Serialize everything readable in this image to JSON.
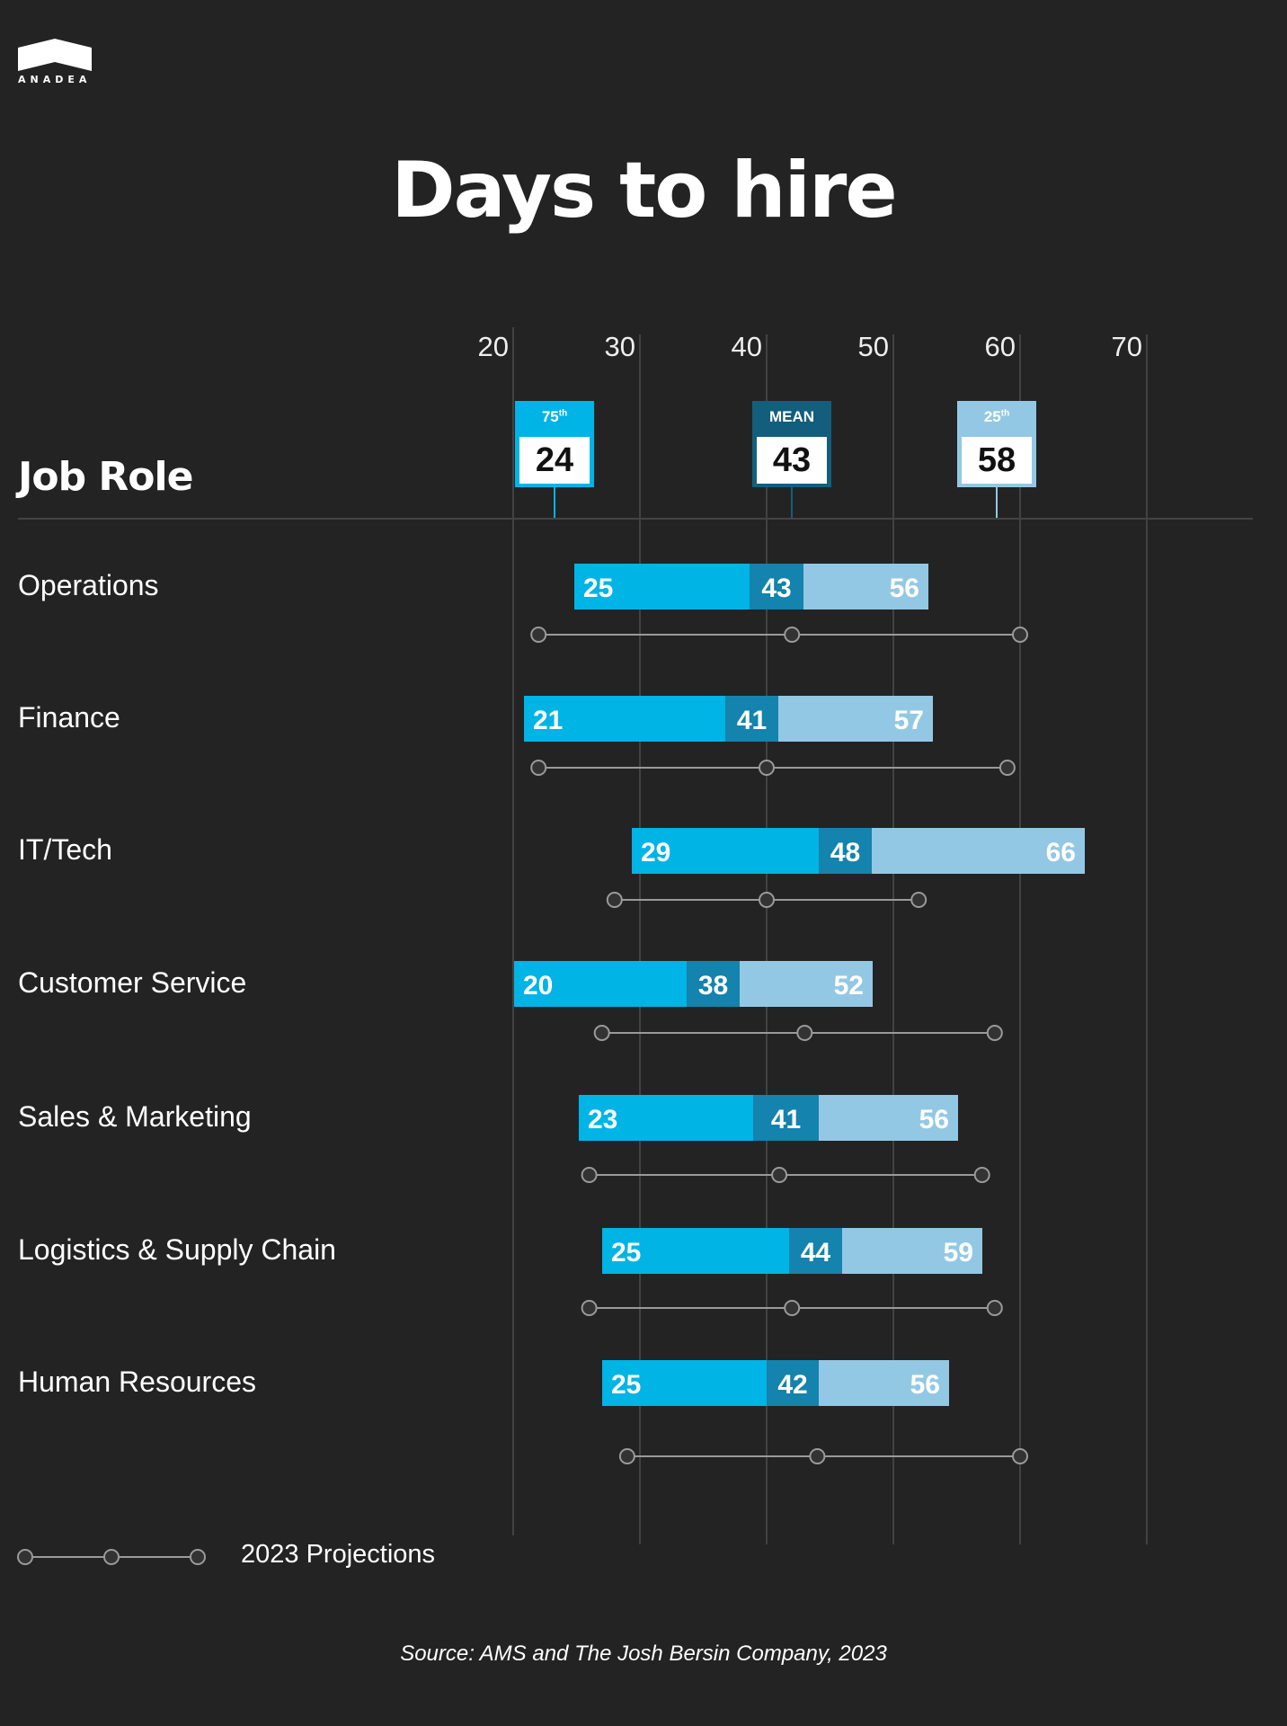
{
  "brand": {
    "name": "ANADEA",
    "logo_icon": "anadea-roof-logo-icon"
  },
  "colors": {
    "background": "#232323",
    "p75": "#00b4e6",
    "mean": "#1483ad",
    "mean_marker": "#135e7d",
    "p25": "#93c8e4",
    "grid": "#424242",
    "projection": "#9a9a9a"
  },
  "chart_data": {
    "type": "bar",
    "subtype": "stacked-horizontal-range",
    "title": "Days to hire",
    "ylabel": "Job Role",
    "xlabel": "",
    "xlim": [
      20,
      70
    ],
    "x_ticks": [
      "20",
      "30",
      "40",
      "50",
      "60",
      "70"
    ],
    "grid": true,
    "markers": [
      {
        "key": "p75",
        "label": "75",
        "sup": "th",
        "value": 24
      },
      {
        "key": "mean",
        "label": "MEAN",
        "sup": "",
        "value": 43
      },
      {
        "key": "p25",
        "label": "25",
        "sup": "th",
        "value": 58
      }
    ],
    "categories": [
      "Operations",
      "Finance",
      "IT/Tech",
      "Customer Service",
      "Sales & Marketing",
      "Logistics & Supply Chain",
      "Human Resources"
    ],
    "series": [
      {
        "name": "75th percentile",
        "values": [
          25,
          21,
          29,
          20,
          23,
          25,
          25
        ]
      },
      {
        "name": "Mean",
        "values": [
          43,
          41,
          48,
          38,
          41,
          44,
          42
        ]
      },
      {
        "name": "25th percentile",
        "values": [
          56,
          57,
          66,
          52,
          56,
          59,
          56
        ]
      }
    ],
    "projections": {
      "name": "2023 Projections",
      "values": [
        [
          22,
          42,
          60
        ],
        [
          22,
          40,
          59
        ],
        [
          28,
          40,
          52
        ],
        [
          27,
          43,
          58
        ],
        [
          26,
          41,
          57
        ],
        [
          26,
          42,
          58
        ],
        [
          29,
          44,
          60
        ]
      ]
    },
    "legend": {
      "label": "2023 Projections",
      "position": "bottom-left"
    },
    "source": "Source: AMS and The Josh Bersin Company, 2023"
  }
}
